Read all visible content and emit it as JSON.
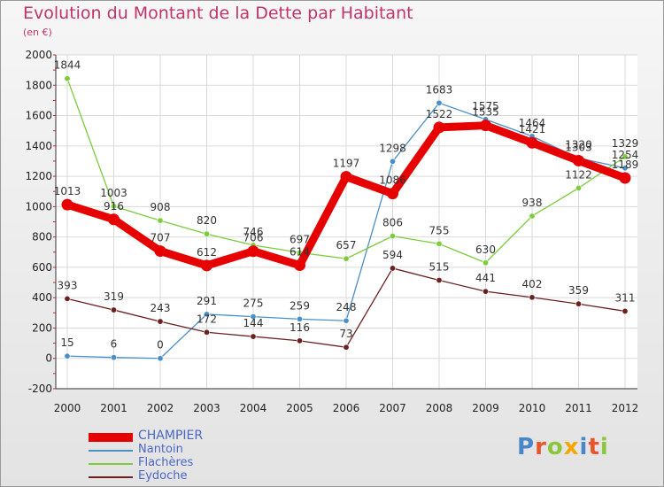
{
  "title": "Evolution du Montant de la Dette par Habitant",
  "subtitle": "(en €)",
  "logo": {
    "text": "Proxiti",
    "letter_colors": [
      "#4a86c8",
      "#e8552a",
      "#8cc63f",
      "#f2a800",
      "#4a86c8",
      "#e8552a",
      "#8cc63f"
    ]
  },
  "chart_data": {
    "type": "line",
    "categories": [
      "2000",
      "2001",
      "2002",
      "2003",
      "2004",
      "2005",
      "2006",
      "2007",
      "2008",
      "2009",
      "2010",
      "2011",
      "2012"
    ],
    "ylim": [
      -200,
      2000
    ],
    "yticks": [
      -200,
      0,
      200,
      400,
      600,
      800,
      1000,
      1200,
      1400,
      1600,
      1800,
      2000
    ],
    "series": [
      {
        "name": "CHAMPIER",
        "color": "#e60000",
        "emphasis": true,
        "values": [
          1013,
          916,
          707,
          612,
          706,
          614,
          1197,
          1086,
          1522,
          1535,
          1421,
          1303,
          1189
        ]
      },
      {
        "name": "Nantoin",
        "color": "#4a90c8",
        "emphasis": false,
        "values": [
          15,
          6,
          0,
          291,
          275,
          259,
          248,
          1298,
          1683,
          1575,
          1464,
          1320,
          1254
        ]
      },
      {
        "name": "Flachères",
        "color": "#7ccc3c",
        "emphasis": false,
        "values": [
          1844,
          1003,
          908,
          820,
          746,
          697,
          657,
          806,
          755,
          630,
          938,
          1122,
          1329
        ]
      },
      {
        "name": "Eydoche",
        "color": "#6b2020",
        "emphasis": false,
        "values": [
          393,
          319,
          243,
          172,
          144,
          116,
          73,
          594,
          515,
          441,
          402,
          359,
          311
        ]
      }
    ],
    "data_labels": [
      {
        "text": "1013",
        "year": "2000",
        "value": 1013
      },
      {
        "text": "916",
        "year": "2001",
        "value": 916
      },
      {
        "text": "707",
        "year": "2002",
        "value": 707
      },
      {
        "text": "612",
        "year": "2003",
        "value": 612
      },
      {
        "text": "706",
        "year": "2004",
        "value": 706
      },
      {
        "text": "614",
        "year": "2005",
        "value": 614
      },
      {
        "text": "1197",
        "year": "2006",
        "value": 1197
      },
      {
        "text": "1086",
        "year": "2007",
        "value": 1086
      },
      {
        "text": "1522",
        "year": "2008",
        "value": 1522
      },
      {
        "text": "1535",
        "year": "2009",
        "value": 1535
      },
      {
        "text": "1421",
        "year": "2010",
        "value": 1421
      },
      {
        "text": "1303",
        "year": "2011",
        "value": 1303
      },
      {
        "text": "1189",
        "year": "2012",
        "value": 1189
      },
      {
        "text": "15",
        "year": "2000",
        "value": 15
      },
      {
        "text": "6",
        "year": "2001",
        "value": 6
      },
      {
        "text": "0",
        "year": "2002",
        "value": 0
      },
      {
        "text": "291",
        "year": "2003",
        "value": 291
      },
      {
        "text": "275",
        "year": "2004",
        "value": 275
      },
      {
        "text": "259",
        "year": "2005",
        "value": 259
      },
      {
        "text": "248",
        "year": "2006",
        "value": 248
      },
      {
        "text": "1298",
        "year": "2007",
        "value": 1298
      },
      {
        "text": "1683",
        "year": "2008",
        "value": 1683
      },
      {
        "text": "1575",
        "year": "2009",
        "value": 1575
      },
      {
        "text": "1464",
        "year": "2010",
        "value": 1464
      },
      {
        "text": "1320",
        "year": "2011",
        "value": 1320
      },
      {
        "text": "1254",
        "year": "2012",
        "value": 1254
      },
      {
        "text": "1844",
        "year": "2000",
        "value": 1844
      },
      {
        "text": "1003",
        "year": "2001",
        "value": 1003
      },
      {
        "text": "908",
        "year": "2002",
        "value": 908
      },
      {
        "text": "820",
        "year": "2003",
        "value": 820
      },
      {
        "text": "746",
        "year": "2004",
        "value": 746
      },
      {
        "text": "697",
        "year": "2005",
        "value": 697
      },
      {
        "text": "657",
        "year": "2006",
        "value": 657
      },
      {
        "text": "806",
        "year": "2007",
        "value": 806
      },
      {
        "text": "755",
        "year": "2008",
        "value": 755
      },
      {
        "text": "630",
        "year": "2009",
        "value": 630
      },
      {
        "text": "938",
        "year": "2010",
        "value": 938
      },
      {
        "text": "1122",
        "year": "2011",
        "value": 1122
      },
      {
        "text": "1329",
        "year": "2012",
        "value": 1329
      },
      {
        "text": "393",
        "year": "2000",
        "value": 393
      },
      {
        "text": "319",
        "year": "2001",
        "value": 319
      },
      {
        "text": "243",
        "year": "2002",
        "value": 243
      },
      {
        "text": "172",
        "year": "2003",
        "value": 172
      },
      {
        "text": "144",
        "year": "2004",
        "value": 144
      },
      {
        "text": "116",
        "year": "2005",
        "value": 116
      },
      {
        "text": "73",
        "year": "2006",
        "value": 73
      },
      {
        "text": "594",
        "year": "2007",
        "value": 594
      },
      {
        "text": "515",
        "year": "2008",
        "value": 515
      },
      {
        "text": "441",
        "year": "2009",
        "value": 441
      },
      {
        "text": "402",
        "year": "2010",
        "value": 402
      },
      {
        "text": "359",
        "year": "2011",
        "value": 359
      },
      {
        "text": "311",
        "year": "2012",
        "value": 311
      }
    ]
  }
}
